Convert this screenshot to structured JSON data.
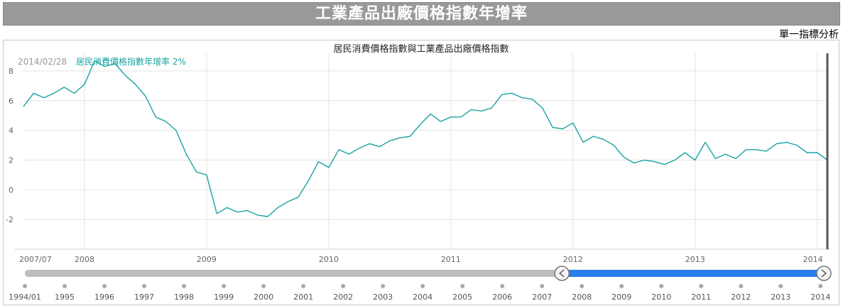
{
  "header": {
    "title": "工業產品出廠價格指數年增率",
    "analysis_link": "單一指標分析"
  },
  "chart_data": {
    "type": "line",
    "title": "居民消費價格指數與工業產品出廠價格指數",
    "tooltip": {
      "date": "2014/02/28",
      "series_label": "居民消費價格指數年增率 2%"
    },
    "colors": {
      "series": "#1aa3a3",
      "grid": "#e3e3e3",
      "slider_fill": "#2a7fea",
      "slider_track": "#bdbdbd",
      "cursor": "#555555"
    },
    "ylim": [
      -4,
      9
    ],
    "y_ticks": [
      -2,
      0,
      2,
      4,
      6,
      8
    ],
    "y_tick_labels": [
      "-2",
      "0",
      "2",
      "4",
      "6",
      "8"
    ],
    "x_range": [
      "2007-07",
      "2014-02"
    ],
    "x_ticks": [
      {
        "label": "2007/07",
        "date": "2007-07"
      },
      {
        "label": "2008",
        "date": "2008-01"
      },
      {
        "label": "2009",
        "date": "2009-01"
      },
      {
        "label": "2010",
        "date": "2010-01"
      },
      {
        "label": "2011",
        "date": "2011-01"
      },
      {
        "label": "2012",
        "date": "2012-01"
      },
      {
        "label": "2013",
        "date": "2013-01"
      },
      {
        "label": "2014",
        "date": "2014-01"
      }
    ],
    "series": [
      {
        "name": "居民消費價格指數年增率",
        "points": [
          [
            "2007-07",
            5.6
          ],
          [
            "2007-08",
            6.5
          ],
          [
            "2007-09",
            6.2
          ],
          [
            "2007-10",
            6.5
          ],
          [
            "2007-11",
            6.9
          ],
          [
            "2007-12",
            6.5
          ],
          [
            "2008-01",
            7.1
          ],
          [
            "2008-02",
            8.7
          ],
          [
            "2008-03",
            8.3
          ],
          [
            "2008-04",
            8.5
          ],
          [
            "2008-05",
            7.7
          ],
          [
            "2008-06",
            7.1
          ],
          [
            "2008-07",
            6.3
          ],
          [
            "2008-08",
            4.9
          ],
          [
            "2008-09",
            4.6
          ],
          [
            "2008-10",
            4.0
          ],
          [
            "2008-11",
            2.4
          ],
          [
            "2008-12",
            1.2
          ],
          [
            "2009-01",
            1.0
          ],
          [
            "2009-02",
            -1.6
          ],
          [
            "2009-03",
            -1.2
          ],
          [
            "2009-04",
            -1.5
          ],
          [
            "2009-05",
            -1.4
          ],
          [
            "2009-06",
            -1.7
          ],
          [
            "2009-07",
            -1.8
          ],
          [
            "2009-08",
            -1.2
          ],
          [
            "2009-09",
            -0.8
          ],
          [
            "2009-10",
            -0.5
          ],
          [
            "2009-11",
            0.6
          ],
          [
            "2009-12",
            1.9
          ],
          [
            "2010-01",
            1.5
          ],
          [
            "2010-02",
            2.7
          ],
          [
            "2010-03",
            2.4
          ],
          [
            "2010-04",
            2.8
          ],
          [
            "2010-05",
            3.1
          ],
          [
            "2010-06",
            2.9
          ],
          [
            "2010-07",
            3.3
          ],
          [
            "2010-08",
            3.5
          ],
          [
            "2010-09",
            3.6
          ],
          [
            "2010-10",
            4.4
          ],
          [
            "2010-11",
            5.1
          ],
          [
            "2010-12",
            4.6
          ],
          [
            "2011-01",
            4.9
          ],
          [
            "2011-02",
            4.9
          ],
          [
            "2011-03",
            5.4
          ],
          [
            "2011-04",
            5.3
          ],
          [
            "2011-05",
            5.5
          ],
          [
            "2011-06",
            6.4
          ],
          [
            "2011-07",
            6.5
          ],
          [
            "2011-08",
            6.2
          ],
          [
            "2011-09",
            6.1
          ],
          [
            "2011-10",
            5.5
          ],
          [
            "2011-11",
            4.2
          ],
          [
            "2011-12",
            4.1
          ],
          [
            "2012-01",
            4.5
          ],
          [
            "2012-02",
            3.2
          ],
          [
            "2012-03",
            3.6
          ],
          [
            "2012-04",
            3.4
          ],
          [
            "2012-05",
            3.0
          ],
          [
            "2012-06",
            2.2
          ],
          [
            "2012-07",
            1.8
          ],
          [
            "2012-08",
            2.0
          ],
          [
            "2012-09",
            1.9
          ],
          [
            "2012-10",
            1.7
          ],
          [
            "2012-11",
            2.0
          ],
          [
            "2012-12",
            2.5
          ],
          [
            "2013-01",
            2.0
          ],
          [
            "2013-02",
            3.2
          ],
          [
            "2013-03",
            2.1
          ],
          [
            "2013-04",
            2.4
          ],
          [
            "2013-05",
            2.1
          ],
          [
            "2013-06",
            2.7
          ],
          [
            "2013-07",
            2.7
          ],
          [
            "2013-08",
            2.6
          ],
          [
            "2013-09",
            3.1
          ],
          [
            "2013-10",
            3.2
          ],
          [
            "2013-11",
            3.0
          ],
          [
            "2013-12",
            2.5
          ],
          [
            "2014-01",
            2.5
          ],
          [
            "2014-02",
            2.0
          ]
        ]
      }
    ],
    "navigator": {
      "year_labels": [
        "1994/01",
        "1995",
        "1996",
        "1997",
        "1998",
        "1999",
        "2000",
        "2001",
        "2002",
        "2003",
        "2004",
        "2005",
        "2006",
        "2007",
        "2008",
        "2009",
        "2010",
        "2011",
        "2012",
        "2013",
        "2014"
      ],
      "year_dates": [
        "1994-01",
        "1995-01",
        "1996-01",
        "1997-01",
        "1998-01",
        "1999-01",
        "2000-01",
        "2001-01",
        "2002-01",
        "2003-01",
        "2004-01",
        "2005-01",
        "2006-01",
        "2007-01",
        "2008-01",
        "2009-01",
        "2010-01",
        "2011-01",
        "2012-01",
        "2013-01",
        "2014-01"
      ],
      "range": [
        "1994-01",
        "2014-02"
      ],
      "selected": [
        "2007-07",
        "2014-02"
      ]
    }
  }
}
